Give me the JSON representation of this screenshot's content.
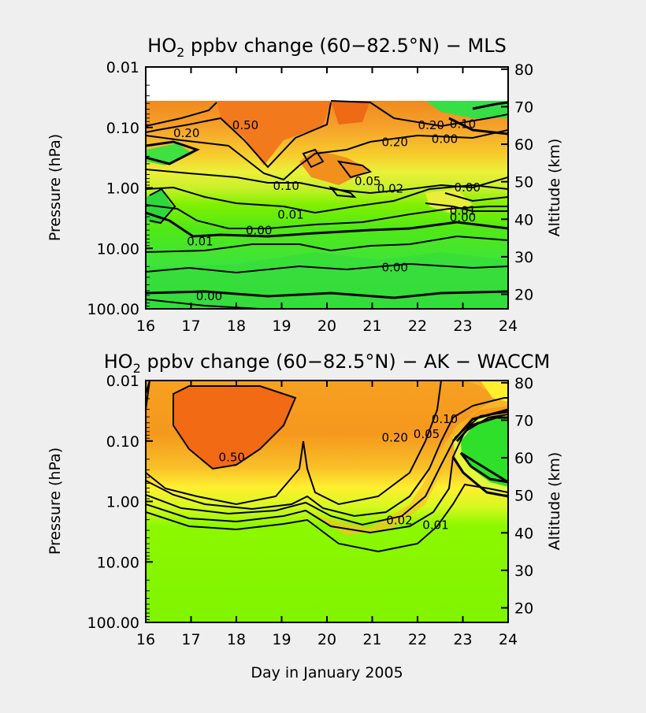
{
  "chart_data": [
    {
      "type": "heatmap",
      "title_main": "HO",
      "title_sub": "2",
      "title_rest": " ppbv change (60−82.5°N) − MLS",
      "xlabel": "",
      "ylabel": "Pressure (hPa)",
      "y2label": "Altitude (km)",
      "xlim": [
        16,
        24
      ],
      "ylim": [
        100,
        0.01
      ],
      "yscale": "log",
      "x_ticks": [
        16,
        17,
        18,
        19,
        20,
        21,
        22,
        23,
        24
      ],
      "y_ticks": [
        "0.01",
        "0.10",
        "1.00",
        "10.00",
        "100.00"
      ],
      "y_tick_values": [
        0.01,
        0.1,
        1,
        10,
        100
      ],
      "alt_ticks": [
        20,
        30,
        40,
        50,
        60,
        70,
        80
      ],
      "data_top_pressure": 0.046,
      "contour_labels": [
        {
          "text": "0.20",
          "x": 16.9,
          "y": 0.12
        },
        {
          "text": "0.50",
          "x": 18.2,
          "y": 0.09
        },
        {
          "text": "0.20",
          "x": 22.3,
          "y": 0.09
        },
        {
          "text": "0.10",
          "x": 23.0,
          "y": 0.085
        },
        {
          "text": "0.20",
          "x": 21.5,
          "y": 0.17
        },
        {
          "text": "0.00",
          "x": 22.6,
          "y": 0.15
        },
        {
          "text": "0.05",
          "x": 20.9,
          "y": 0.75
        },
        {
          "text": "0.10",
          "x": 19.1,
          "y": 0.9
        },
        {
          "text": "0.02",
          "x": 21.4,
          "y": 1.0
        },
        {
          "text": "0.00",
          "x": 23.1,
          "y": 0.95
        },
        {
          "text": "0.01",
          "x": 19.2,
          "y": 2.7
        },
        {
          "text": "0.01",
          "x": 23.0,
          "y": 2.3
        },
        {
          "text": "0.00",
          "x": 23.0,
          "y": 3.0
        },
        {
          "text": "0.00",
          "x": 18.5,
          "y": 4.9
        },
        {
          "text": "0.01",
          "x": 17.2,
          "y": 7.5
        },
        {
          "text": "0.00",
          "x": 21.5,
          "y": 20
        },
        {
          "text": "0.00",
          "x": 17.4,
          "y": 60
        }
      ]
    },
    {
      "type": "heatmap",
      "title_main": "HO",
      "title_sub": "2",
      "title_rest": " ppbv change (60−82.5°N) − AK − WACCM",
      "xlabel": "Day in January 2005",
      "ylabel": "Pressure (hPa)",
      "y2label": "Altitude (km)",
      "xlim": [
        16,
        24
      ],
      "ylim": [
        100,
        0.01
      ],
      "yscale": "log",
      "x_ticks": [
        16,
        17,
        18,
        19,
        20,
        21,
        22,
        23,
        24
      ],
      "y_ticks": [
        "0.01",
        "0.10",
        "1.00",
        "10.00",
        "100.00"
      ],
      "y_tick_values": [
        0.01,
        0.1,
        1,
        10,
        100
      ],
      "alt_ticks": [
        20,
        30,
        40,
        50,
        60,
        70,
        80
      ],
      "contour_labels": [
        {
          "text": "0.50",
          "x": 17.9,
          "y": 0.18
        },
        {
          "text": "0.20",
          "x": 21.5,
          "y": 0.085
        },
        {
          "text": "0.10",
          "x": 22.6,
          "y": 0.042
        },
        {
          "text": "0.05",
          "x": 22.2,
          "y": 0.075
        },
        {
          "text": "0.02",
          "x": 21.6,
          "y": 2.0
        },
        {
          "text": "0.01",
          "x": 22.4,
          "y": 2.4
        }
      ]
    }
  ]
}
